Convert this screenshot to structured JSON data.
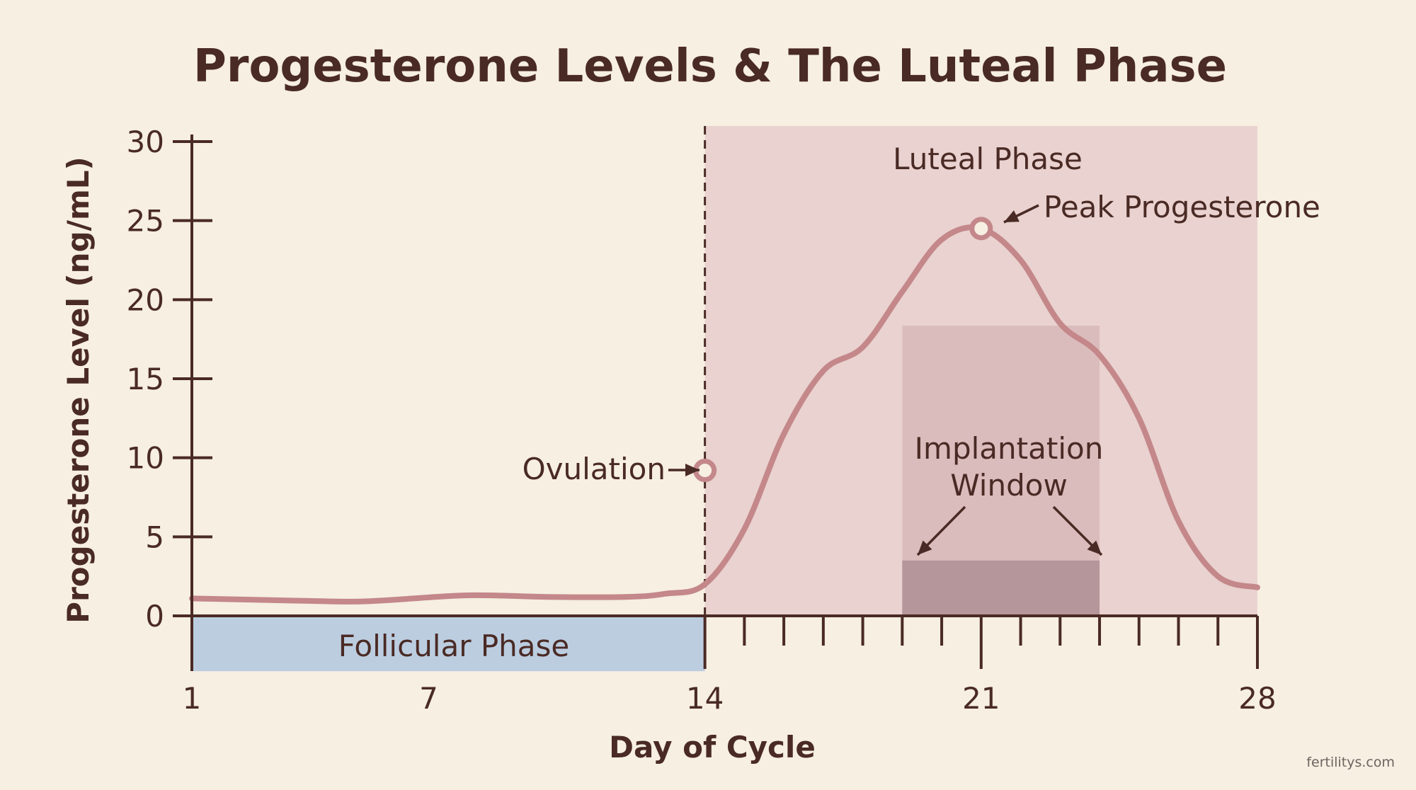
{
  "chart_data": {
    "type": "line",
    "title": "Progesterone Levels & The Luteal Phase",
    "xlabel": "Day of Cycle",
    "ylabel": "Progesterone Level (ng/mL)",
    "xlim": [
      1,
      28
    ],
    "ylim": [
      0,
      30
    ],
    "x_ticks": [
      1,
      7,
      14,
      21,
      28
    ],
    "y_ticks": [
      0,
      5,
      10,
      15,
      20,
      25,
      30
    ],
    "series": [
      {
        "x": [
          1,
          3,
          5,
          6,
          8,
          10,
          12,
          13,
          14,
          15,
          16,
          17,
          18,
          19,
          20,
          21,
          22,
          23,
          24,
          25,
          26,
          27,
          28
        ],
        "values": [
          1.1,
          1.0,
          0.9,
          1.0,
          1.3,
          1.2,
          1.2,
          1.4,
          2.0,
          5.5,
          11.5,
          15.5,
          17.0,
          20.5,
          23.8,
          24.5,
          22.5,
          18.5,
          16.5,
          12.5,
          6.0,
          2.5,
          1.8
        ]
      }
    ],
    "regions": [
      {
        "label": "Luteal Phase",
        "x_range": [
          14,
          28
        ],
        "color": "#e9d2cf"
      },
      {
        "label": "Follicular Phase",
        "x_range": [
          1,
          14
        ],
        "y_range": [
          -3.5,
          0
        ],
        "color": "#bccde0"
      },
      {
        "label": "Implantation Window",
        "x_range": [
          19,
          24
        ],
        "color": "#dbbcbd"
      }
    ],
    "annotations": [
      {
        "label": "Ovulation",
        "x": 14,
        "y": 9.2
      },
      {
        "label": "Peak Progesterone",
        "x": 21,
        "y": 24.5
      }
    ],
    "grid": false
  },
  "footer": {
    "source": "fertilitys.com"
  },
  "colors": {
    "background": "#f6efe2",
    "curve": "#c4878a",
    "axis": "#4a2a24",
    "luteal_fill": "#e9d2cf",
    "implantation_fill": "#dbbcbd",
    "implantation_bar": "#b4969b",
    "follicular_fill": "#bccde0"
  }
}
